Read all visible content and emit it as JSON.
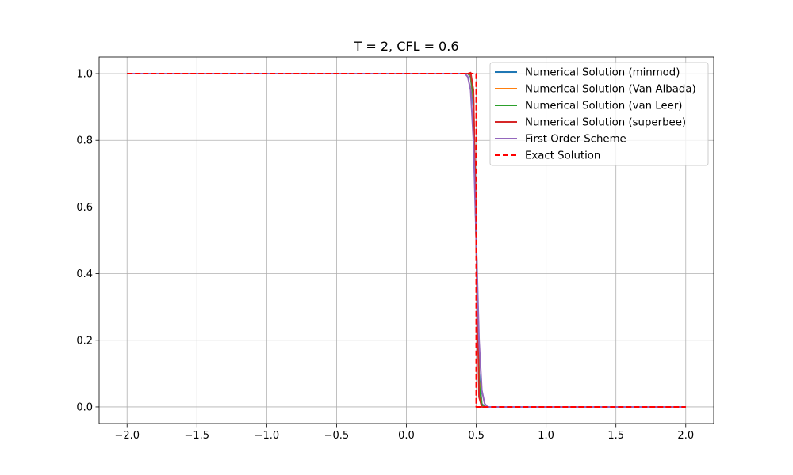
{
  "chart_data": {
    "type": "line",
    "title": "T = 2, CFL = 0.6",
    "xlabel": "",
    "ylabel": "",
    "xlim": [
      -2.2,
      2.2
    ],
    "ylim": [
      -0.05,
      1.05
    ],
    "x_ticks": [
      -2.0,
      -1.5,
      -1.0,
      -0.5,
      0.0,
      0.5,
      1.0,
      1.5,
      2.0
    ],
    "x_tick_labels": [
      "−2.0",
      "−1.5",
      "−1.0",
      "−0.5",
      "0.0",
      "0.5",
      "1.0",
      "1.5",
      "2.0"
    ],
    "y_ticks": [
      0.0,
      0.2,
      0.4,
      0.6,
      0.8,
      1.0
    ],
    "y_tick_labels": [
      "0.0",
      "0.2",
      "0.4",
      "0.6",
      "0.8",
      "1.0"
    ],
    "grid": true,
    "legend_position": "top-right",
    "series": [
      {
        "name": "Numerical Solution (minmod)",
        "color": "#1f77b4",
        "style": "solid",
        "x": [
          -2.0,
          0.44,
          0.46,
          0.48,
          0.5,
          0.52,
          0.54,
          0.56,
          2.0
        ],
        "y": [
          1.0,
          1.0,
          0.99,
          0.9,
          0.5,
          0.1,
          0.01,
          0.0,
          0.0
        ]
      },
      {
        "name": "Numerical Solution (Van Albada)",
        "color": "#ff7f0e",
        "style": "solid",
        "x": [
          -2.0,
          0.44,
          0.46,
          0.48,
          0.5,
          0.52,
          0.54,
          0.56,
          2.0
        ],
        "y": [
          1.0,
          1.0,
          0.995,
          0.92,
          0.5,
          0.08,
          0.005,
          0.0,
          0.0
        ]
      },
      {
        "name": "Numerical Solution (van Leer)",
        "color": "#2ca02c",
        "style": "solid",
        "x": [
          -2.0,
          0.44,
          0.46,
          0.48,
          0.5,
          0.52,
          0.54,
          0.56,
          2.0
        ],
        "y": [
          1.0,
          1.0,
          0.998,
          0.93,
          0.5,
          0.07,
          0.003,
          0.0,
          0.0
        ]
      },
      {
        "name": "Numerical Solution (superbee)",
        "color": "#d62728",
        "style": "solid",
        "x": [
          -2.0,
          0.44,
          0.46,
          0.48,
          0.5,
          0.52,
          0.54,
          2.0
        ],
        "y": [
          1.0,
          1.0,
          1.003,
          0.95,
          0.5,
          0.03,
          0.0,
          0.0
        ]
      },
      {
        "name": "First Order Scheme",
        "color": "#9467bd",
        "style": "solid",
        "x": [
          -2.0,
          0.42,
          0.44,
          0.46,
          0.48,
          0.5,
          0.52,
          0.54,
          0.56,
          0.58,
          2.0
        ],
        "y": [
          1.0,
          1.0,
          0.99,
          0.95,
          0.8,
          0.5,
          0.2,
          0.05,
          0.01,
          0.0,
          0.0
        ]
      },
      {
        "name": "Exact Solution",
        "color": "#ff0000",
        "style": "dashed",
        "x": [
          -2.0,
          0.5,
          0.5,
          2.0
        ],
        "y": [
          1.0,
          1.0,
          0.0,
          0.0
        ]
      }
    ]
  }
}
